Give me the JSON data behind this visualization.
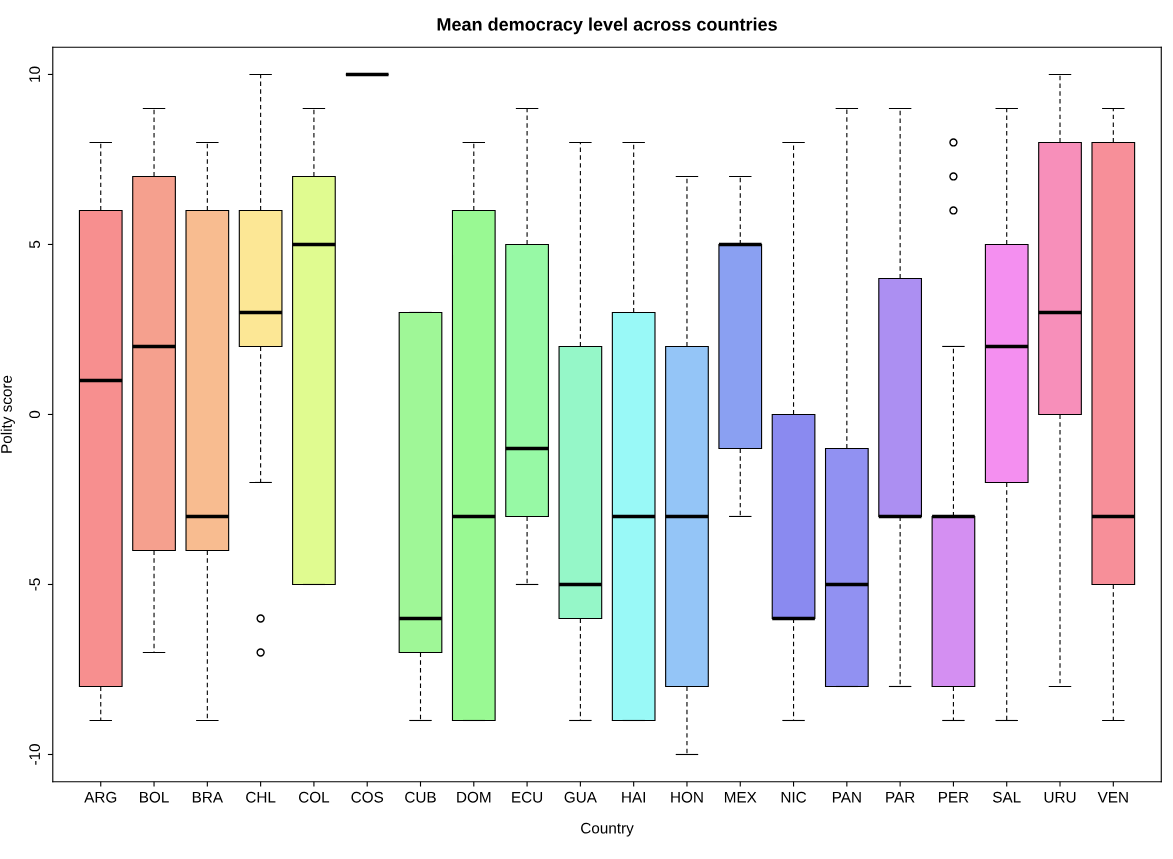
{
  "chart_data": {
    "type": "box",
    "title": "Mean democracy level across countries",
    "xlabel": "Country",
    "ylabel": "Polity score",
    "categories": [
      "ARG",
      "BOL",
      "BRA",
      "CHL",
      "COL",
      "COS",
      "CUB",
      "DOM",
      "ECU",
      "GUA",
      "HAI",
      "HON",
      "MEX",
      "NIC",
      "PAN",
      "PAR",
      "PER",
      "SAL",
      "URU",
      "VEN"
    ],
    "boxes": [
      {
        "low": -9,
        "q1": -8,
        "median": 1,
        "q3": 6,
        "high": 8
      },
      {
        "low": -7,
        "q1": -4,
        "median": 2,
        "q3": 7,
        "high": 9
      },
      {
        "low": -9,
        "q1": -4,
        "median": -3,
        "q3": 6,
        "high": 8
      },
      {
        "low": -2,
        "q1": 2,
        "median": 3,
        "q3": 6,
        "high": 10,
        "outliers": [
          -6,
          -7
        ]
      },
      {
        "low": -5,
        "q1": -5,
        "median": 5,
        "q3": 7,
        "high": 9
      },
      {
        "low": 10,
        "q1": 10,
        "median": 10,
        "q3": 10,
        "high": 10
      },
      {
        "low": -9,
        "q1": -7,
        "median": -6,
        "q3": 3,
        "high": 3
      },
      {
        "low": -9,
        "q1": -9,
        "median": -3,
        "q3": 6,
        "high": 8
      },
      {
        "low": -5,
        "q1": -3,
        "median": -1,
        "q3": 5,
        "high": 9
      },
      {
        "low": -9,
        "q1": -6,
        "median": -5,
        "q3": 2,
        "high": 8
      },
      {
        "low": -9,
        "q1": -9,
        "median": -3,
        "q3": 3,
        "high": 8
      },
      {
        "low": -10,
        "q1": -8,
        "median": -3,
        "q3": 2,
        "high": 7
      },
      {
        "low": -3,
        "q1": -1,
        "median": 5,
        "q3": 5,
        "high": 7
      },
      {
        "low": -9,
        "q1": -6,
        "median": -6,
        "q3": 0,
        "high": 8
      },
      {
        "low": -8,
        "q1": -8,
        "median": -5,
        "q3": -1,
        "high": 9
      },
      {
        "low": -8,
        "q1": -3,
        "median": -3,
        "q3": 4,
        "high": 9
      },
      {
        "low": -9,
        "q1": -8,
        "median": -3,
        "q3": -3,
        "high": 2,
        "outliers": [
          6,
          7,
          8
        ]
      },
      {
        "low": -9,
        "q1": -2,
        "median": 2,
        "q3": 5,
        "high": 9
      },
      {
        "low": -8,
        "q1": 0,
        "median": 3,
        "q3": 8,
        "high": 10
      },
      {
        "low": -9,
        "q1": -5,
        "median": -3,
        "q3": 8,
        "high": 9
      }
    ],
    "colors": [
      "#f78f8f",
      "#f5a08e",
      "#f8bc90",
      "#fce795",
      "#e0fb90",
      null,
      "#9ff797",
      "#99f993",
      "#97f9a5",
      "#95f7c8",
      "#99f9f7",
      "#94c5f7",
      "#8aa0f2",
      "#8a8af0",
      "#9191f2",
      "#ac8ff2",
      "#d48ff2",
      "#f48ff0",
      "#f78fba",
      "#f78f99"
    ],
    "ylim": [
      -10.8,
      10.8
    ],
    "yticks": [
      -10,
      -5,
      0,
      5,
      10
    ],
    "grid": false,
    "legend": false
  }
}
